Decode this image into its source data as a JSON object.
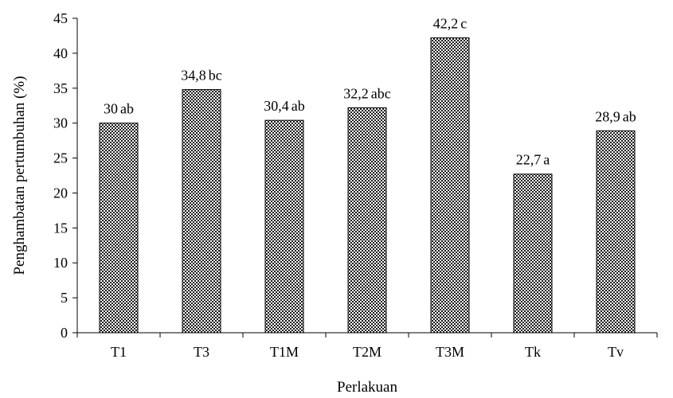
{
  "chart_data": {
    "type": "bar",
    "title": "",
    "xlabel": "Perlakuan",
    "ylabel": "Penghambatan pertumbuhan (%)",
    "ylim": [
      0,
      45
    ],
    "yticks": [
      0,
      5,
      10,
      15,
      20,
      25,
      30,
      35,
      40,
      45
    ],
    "categories": [
      "T1",
      "T3",
      "T1M",
      "T2M",
      "T3M",
      "Tk",
      "Tv"
    ],
    "values": [
      30,
      34.8,
      30.4,
      32.2,
      42.2,
      22.7,
      28.9
    ],
    "value_labels": [
      "30",
      "34,8",
      "30,4",
      "32,2",
      "42,2",
      "22,7",
      "28,9"
    ],
    "significance_letters": [
      "ab",
      "bc",
      "ab",
      "abc",
      "c",
      "a",
      "ab"
    ],
    "grid": false,
    "legend": "none",
    "bar_fill": "crosshatch"
  }
}
